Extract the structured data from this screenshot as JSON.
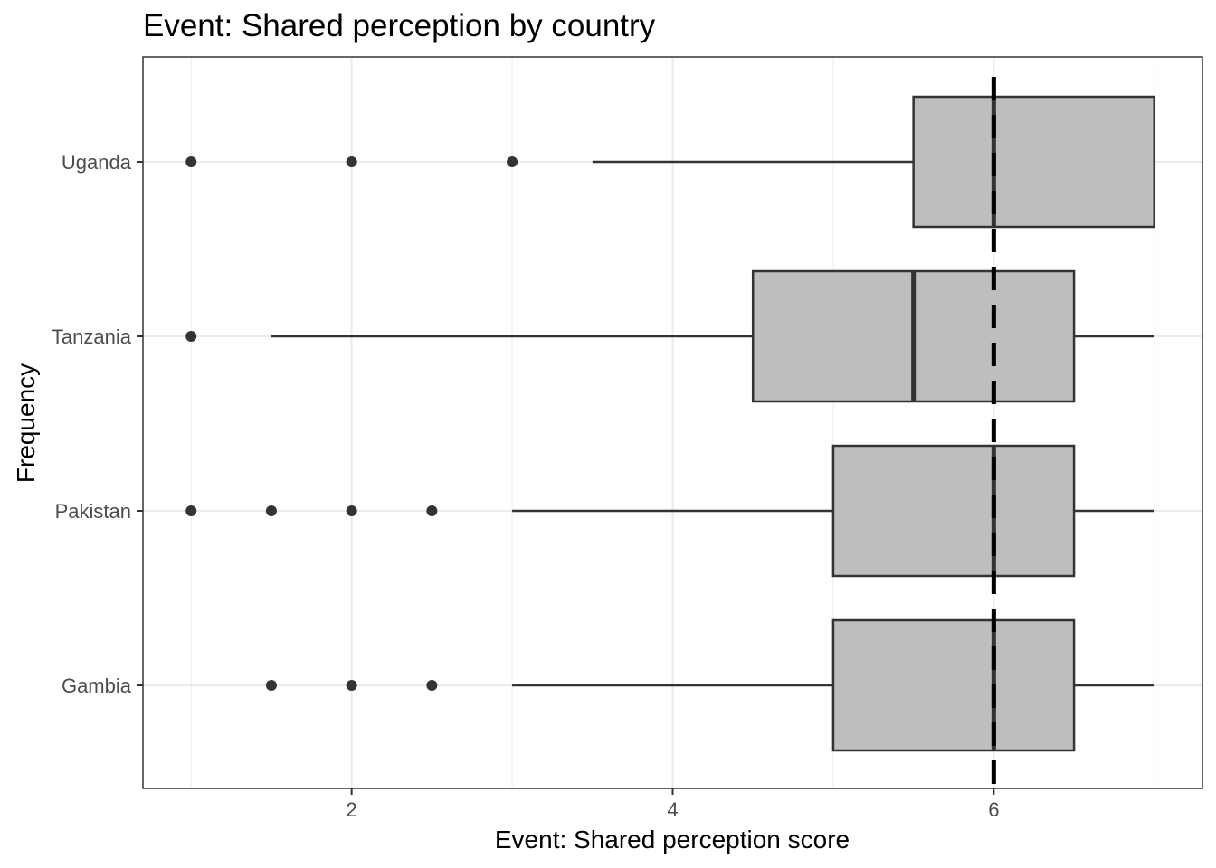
{
  "chart_data": {
    "type": "boxplot",
    "title": "Event: Shared perception by country",
    "xlabel": "Event: Shared perception score",
    "ylabel": "Frequency",
    "xlim": [
      0.7,
      7.3
    ],
    "x_ticks": [
      2,
      4,
      6
    ],
    "categories": [
      "Uganda",
      "Tanzania",
      "Pakistan",
      "Gambia"
    ],
    "boxes": [
      {
        "category": "Uganda",
        "lower_whisker": 3.5,
        "q1": 5.5,
        "median": 6.0,
        "q3": 7.0,
        "upper_whisker": 7.0,
        "outliers": [
          1,
          2,
          3
        ]
      },
      {
        "category": "Tanzania",
        "lower_whisker": 1.5,
        "q1": 4.5,
        "median": 5.5,
        "q3": 6.5,
        "upper_whisker": 7.0,
        "outliers": [
          1
        ]
      },
      {
        "category": "Pakistan",
        "lower_whisker": 3.0,
        "q1": 5.0,
        "median": 6.0,
        "q3": 6.5,
        "upper_whisker": 7.0,
        "outliers": [
          1,
          1.5,
          2,
          2.5
        ]
      },
      {
        "category": "Gambia",
        "lower_whisker": 3.0,
        "q1": 5.0,
        "median": 6.0,
        "q3": 6.5,
        "upper_whisker": 7.0,
        "outliers": [
          1.5,
          2,
          2.5
        ]
      }
    ],
    "reference_line": {
      "x": 6,
      "style": "dashed",
      "color": "#000000"
    },
    "grid": true,
    "box_fill": "#bebebe",
    "box_stroke": "#333333",
    "point_color": "#333333"
  }
}
